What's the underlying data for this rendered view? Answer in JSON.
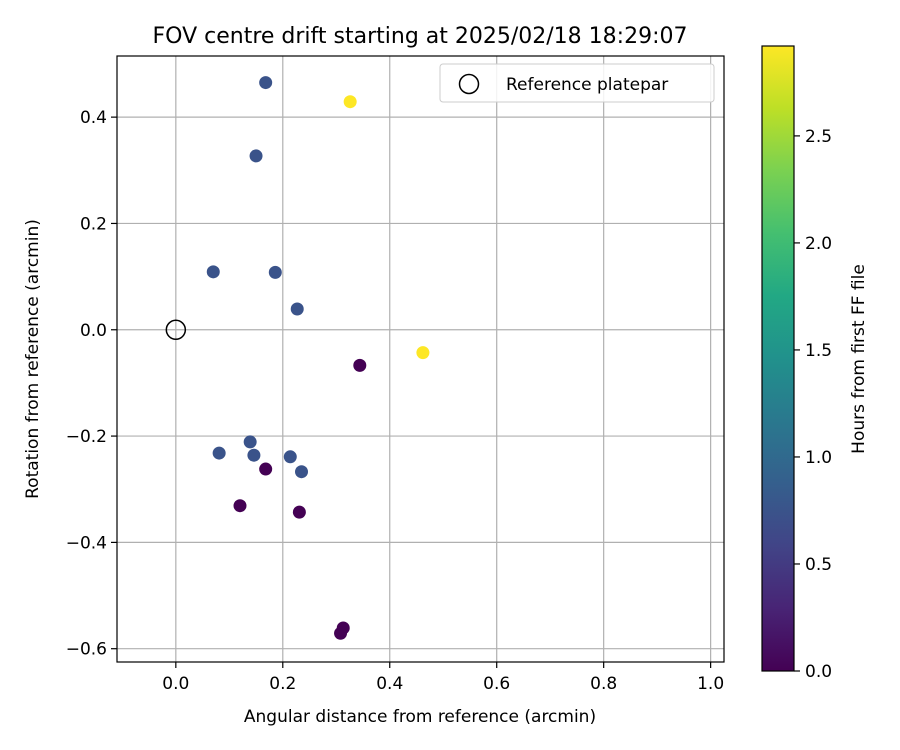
{
  "chart_data": {
    "type": "scatter",
    "title": "FOV centre drift starting at 2025/02/18 18:29:07",
    "xlabel": "Angular distance from reference (arcmin)",
    "ylabel": "Rotation from reference (arcmin)",
    "xlim": [
      -0.11,
      1.025
    ],
    "ylim": [
      -0.625,
      0.515
    ],
    "x_ticks": [
      0.0,
      0.2,
      0.4,
      0.6,
      0.8,
      1.0
    ],
    "x_tick_labels": [
      "0.0",
      "0.2",
      "0.4",
      "0.6",
      "0.8",
      "1.0"
    ],
    "y_ticks": [
      -0.6,
      -0.4,
      -0.2,
      0.0,
      0.2,
      0.4
    ],
    "y_tick_labels": [
      "−0.6",
      "−0.4",
      "−0.2",
      "0.0",
      "0.2",
      "0.4"
    ],
    "grid": true,
    "legend": {
      "position": "upper right",
      "entries": [
        {
          "label": "Reference platepar",
          "marker": "open-circle"
        }
      ]
    },
    "reference_point": {
      "x": 0.0,
      "y": 0.0
    },
    "colorbar": {
      "label": "Hours from first FF file",
      "colormap": "viridis",
      "range": [
        0.0,
        2.92
      ],
      "ticks": [
        0.0,
        0.5,
        1.0,
        1.5,
        2.0,
        2.5
      ],
      "tick_labels": [
        "0.0",
        "0.5",
        "1.0",
        "1.5",
        "2.0",
        "2.5"
      ]
    },
    "points": [
      {
        "x": 0.168,
        "y": 0.465,
        "hours": 0.75
      },
      {
        "x": 0.326,
        "y": 0.429,
        "hours": 2.92
      },
      {
        "x": 0.15,
        "y": 0.327,
        "hours": 0.75
      },
      {
        "x": 0.07,
        "y": 0.109,
        "hours": 0.75
      },
      {
        "x": 0.186,
        "y": 0.108,
        "hours": 0.75
      },
      {
        "x": 0.227,
        "y": 0.039,
        "hours": 0.75
      },
      {
        "x": 0.462,
        "y": -0.043,
        "hours": 2.92
      },
      {
        "x": 0.344,
        "y": -0.067,
        "hours": 0.0
      },
      {
        "x": 0.139,
        "y": -0.211,
        "hours": 0.75
      },
      {
        "x": 0.081,
        "y": -0.232,
        "hours": 0.75
      },
      {
        "x": 0.146,
        "y": -0.236,
        "hours": 0.75
      },
      {
        "x": 0.214,
        "y": -0.239,
        "hours": 0.75
      },
      {
        "x": 0.235,
        "y": -0.267,
        "hours": 0.75
      },
      {
        "x": 0.168,
        "y": -0.262,
        "hours": 0.0
      },
      {
        "x": 0.12,
        "y": -0.331,
        "hours": 0.0
      },
      {
        "x": 0.231,
        "y": -0.343,
        "hours": 0.0
      },
      {
        "x": 0.313,
        "y": -0.561,
        "hours": 0.0
      },
      {
        "x": 0.308,
        "y": -0.571,
        "hours": 0.0
      }
    ]
  }
}
